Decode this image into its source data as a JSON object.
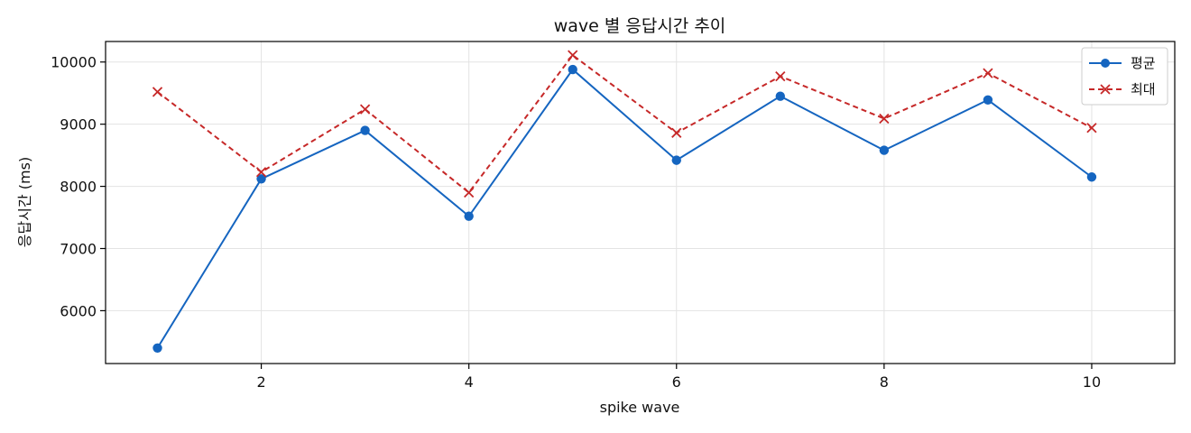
{
  "chart_data": {
    "type": "line",
    "title": "wave 별 응답시간 추이",
    "xlabel": "spike wave",
    "ylabel": "응답시간 (ms)",
    "x": [
      1,
      2,
      3,
      4,
      5,
      6,
      7,
      8,
      9,
      10
    ],
    "xlim": [
      0.5,
      10.8
    ],
    "ylim": [
      5150,
      10330
    ],
    "xticks": [
      2,
      4,
      6,
      8,
      10
    ],
    "yticks": [
      6000,
      7000,
      8000,
      9000,
      10000
    ],
    "grid": true,
    "legend_position": "top-right",
    "series": [
      {
        "name": "평균",
        "values": [
          5400,
          8120,
          8900,
          7520,
          9880,
          8420,
          9450,
          8580,
          9390,
          8150
        ],
        "color": "#1565c0",
        "marker": "circle",
        "line_style": "solid"
      },
      {
        "name": "최대",
        "values": [
          9520,
          8230,
          9240,
          7900,
          10110,
          8860,
          9770,
          9090,
          9820,
          8940
        ],
        "color": "#c62828",
        "marker": "x",
        "line_style": "dashed"
      }
    ]
  }
}
